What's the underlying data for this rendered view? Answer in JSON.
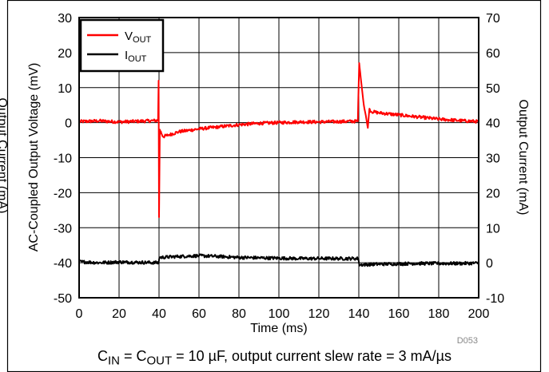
{
  "chart_data": {
    "type": "line",
    "xlabel": "Time (ms)",
    "ylabel_left": "AC-Coupled Output Voltage (mV)",
    "ylabel_right": "Output Current (mA)",
    "ylabel_far_left": "Output Current (mA)",
    "xlim": [
      0,
      200
    ],
    "ylim_left": [
      -50,
      30
    ],
    "ylim_right": [
      -10,
      70
    ],
    "x_ticks": [
      "0",
      "20",
      "40",
      "60",
      "80",
      "100",
      "120",
      "140",
      "160",
      "180",
      "200"
    ],
    "y_left_ticks": [
      "30",
      "20",
      "10",
      "0",
      "-10",
      "-20",
      "-30",
      "-40",
      "-50"
    ],
    "y_right_ticks": [
      "70",
      "60",
      "50",
      "40",
      "30",
      "20",
      "10",
      "0",
      "-10"
    ],
    "grid": true,
    "legend_position": "top-left",
    "figure_id": "D053",
    "series": [
      {
        "name": "VOUT",
        "label_main": "V",
        "label_sub": "OUT",
        "color": "#ff0000",
        "axis": "left",
        "points": [
          [
            0,
            0.3
          ],
          [
            10,
            0.5
          ],
          [
            20,
            0.2
          ],
          [
            30,
            0.4
          ],
          [
            39.5,
            0.6
          ],
          [
            39.8,
            12
          ],
          [
            40.0,
            -27
          ],
          [
            40.4,
            -2
          ],
          [
            42,
            -4
          ],
          [
            45,
            -3.5
          ],
          [
            50,
            -2.6
          ],
          [
            60,
            -1.8
          ],
          [
            70,
            -1.2
          ],
          [
            80,
            -0.6
          ],
          [
            90,
            -0.2
          ],
          [
            100,
            0
          ],
          [
            110,
            0.2
          ],
          [
            120,
            0.2
          ],
          [
            130,
            0.3
          ],
          [
            139.5,
            0.4
          ],
          [
            140.2,
            17
          ],
          [
            141.5,
            10
          ],
          [
            142.5,
            5
          ],
          [
            143.5,
            2
          ],
          [
            144.5,
            -1.5
          ],
          [
            145.3,
            4
          ],
          [
            146,
            3.2
          ],
          [
            150,
            2.8
          ],
          [
            160,
            2.2
          ],
          [
            170,
            1.6
          ],
          [
            180,
            1.0
          ],
          [
            190,
            0.6
          ],
          [
            200,
            0.3
          ]
        ]
      },
      {
        "name": "IOUT",
        "label_main": "I",
        "label_sub": "OUT",
        "color": "#000000",
        "axis": "right",
        "points": [
          [
            0,
            0.3
          ],
          [
            10,
            0
          ],
          [
            20,
            0.2
          ],
          [
            30,
            0.1
          ],
          [
            39.8,
            0
          ],
          [
            40.2,
            1.5
          ],
          [
            50,
            1.8
          ],
          [
            60,
            2.0
          ],
          [
            70,
            1.8
          ],
          [
            80,
            1.5
          ],
          [
            90,
            1.4
          ],
          [
            100,
            1.3
          ],
          [
            110,
            1.2
          ],
          [
            120,
            1.2
          ],
          [
            130,
            1.2
          ],
          [
            139.8,
            1.2
          ],
          [
            140.2,
            -0.6
          ],
          [
            150,
            -0.4
          ],
          [
            160,
            -0.3
          ],
          [
            170,
            -0.2
          ],
          [
            180,
            -0.2
          ],
          [
            190,
            -0.2
          ],
          [
            200,
            -0.1
          ]
        ]
      }
    ]
  },
  "caption": {
    "c_in_main": "C",
    "c_in_sub": "IN",
    "eq1": " = C",
    "c_out_sub": "OUT",
    "rest": " = 10 µF, output current slew rate = 3 mA/µs"
  }
}
